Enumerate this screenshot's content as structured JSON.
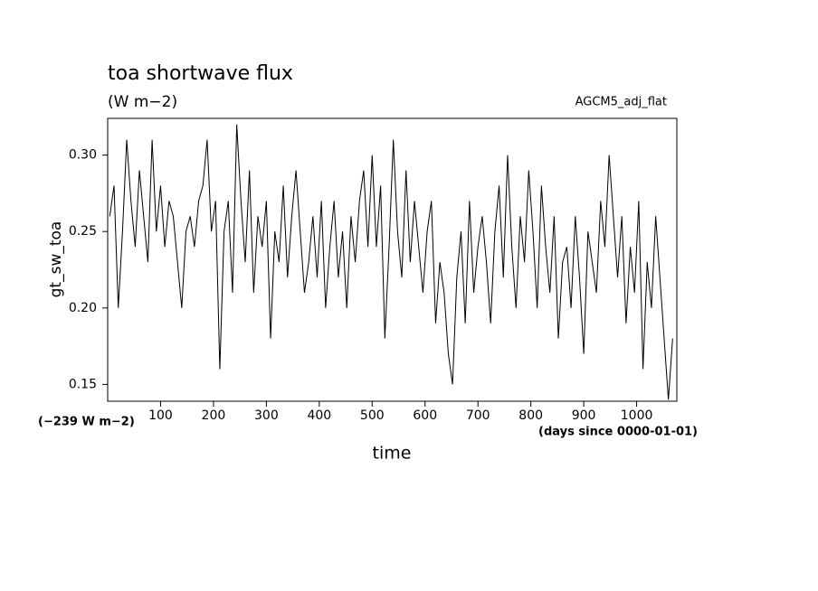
{
  "chart_data": {
    "type": "line",
    "title": "toa shortwave flux",
    "subtitle": "(W m−2)",
    "annotation_right": "AGCM5_adj_flat",
    "annotation_offset": "(−239 W m−2)",
    "x_units": "(days since 0000-01-01)",
    "x_label": "time",
    "y_label": "gt_sw_toa",
    "xlim": [
      0,
      1076
    ],
    "ylim": [
      0.139,
      0.324
    ],
    "xticks": [
      100,
      200,
      300,
      400,
      500,
      600,
      700,
      800,
      900,
      1000
    ],
    "yticks": [
      0.15,
      {
        "value": 0.2,
        "label": "0.20"
      },
      0.25,
      {
        "value": 0.3,
        "label": "0.30"
      }
    ],
    "series": [
      {
        "color": "#000000",
        "x": [
          4,
          12,
          20,
          28,
          36,
          44,
          52,
          60,
          68,
          76,
          84,
          92,
          100,
          108,
          116,
          124,
          132,
          140,
          148,
          156,
          164,
          172,
          180,
          188,
          196,
          204,
          212,
          220,
          228,
          236,
          244,
          252,
          260,
          268,
          276,
          284,
          292,
          300,
          308,
          316,
          324,
          332,
          340,
          348,
          356,
          364,
          372,
          380,
          388,
          396,
          404,
          412,
          420,
          428,
          436,
          444,
          452,
          460,
          468,
          476,
          484,
          492,
          500,
          508,
          516,
          524,
          532,
          540,
          548,
          556,
          564,
          572,
          580,
          588,
          596,
          604,
          612,
          620,
          628,
          636,
          644,
          652,
          660,
          668,
          676,
          684,
          692,
          700,
          708,
          716,
          724,
          732,
          740,
          748,
          756,
          764,
          772,
          780,
          788,
          796,
          804,
          812,
          820,
          828,
          836,
          844,
          852,
          860,
          868,
          876,
          884,
          892,
          900,
          908,
          916,
          924,
          932,
          940,
          948,
          956,
          964,
          972,
          980,
          988,
          996,
          1004,
          1012,
          1020,
          1028,
          1036,
          1044,
          1052,
          1060,
          1068
        ],
        "values": [
          0.26,
          0.28,
          0.2,
          0.25,
          0.31,
          0.27,
          0.24,
          0.29,
          0.26,
          0.23,
          0.31,
          0.25,
          0.28,
          0.24,
          0.27,
          0.26,
          0.23,
          0.2,
          0.25,
          0.26,
          0.24,
          0.27,
          0.28,
          0.31,
          0.25,
          0.27,
          0.16,
          0.25,
          0.27,
          0.21,
          0.32,
          0.27,
          0.23,
          0.29,
          0.21,
          0.26,
          0.24,
          0.27,
          0.18,
          0.25,
          0.23,
          0.28,
          0.22,
          0.26,
          0.29,
          0.25,
          0.21,
          0.23,
          0.26,
          0.22,
          0.27,
          0.2,
          0.24,
          0.27,
          0.22,
          0.25,
          0.2,
          0.26,
          0.23,
          0.27,
          0.29,
          0.24,
          0.3,
          0.24,
          0.28,
          0.18,
          0.24,
          0.31,
          0.25,
          0.22,
          0.29,
          0.23,
          0.27,
          0.24,
          0.21,
          0.25,
          0.27,
          0.19,
          0.23,
          0.21,
          0.17,
          0.15,
          0.22,
          0.25,
          0.19,
          0.27,
          0.21,
          0.24,
          0.26,
          0.23,
          0.19,
          0.25,
          0.28,
          0.22,
          0.3,
          0.24,
          0.2,
          0.26,
          0.23,
          0.29,
          0.25,
          0.2,
          0.28,
          0.24,
          0.21,
          0.26,
          0.18,
          0.23,
          0.24,
          0.2,
          0.26,
          0.22,
          0.17,
          0.25,
          0.23,
          0.21,
          0.27,
          0.24,
          0.3,
          0.26,
          0.22,
          0.26,
          0.19,
          0.24,
          0.21,
          0.27,
          0.16,
          0.23,
          0.2,
          0.26,
          0.22,
          0.18,
          0.14,
          0.18
        ]
      }
    ]
  }
}
